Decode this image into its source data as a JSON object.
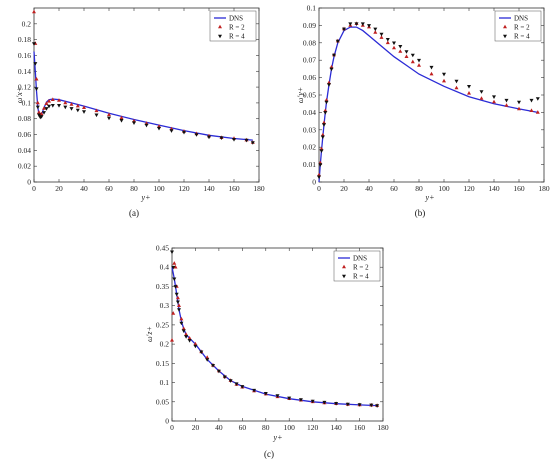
{
  "chart_data": [
    {
      "type": "line",
      "caption": "(a)",
      "xlabel": "y+",
      "ylabel": "ω′x+",
      "xlim": [
        0,
        180
      ],
      "ylim": [
        0,
        0.22
      ],
      "xticks": [
        0,
        20,
        40,
        60,
        80,
        100,
        120,
        140,
        160,
        180
      ],
      "yticks": [
        0,
        0.02,
        0.04,
        0.06,
        0.08,
        0.1,
        0.12,
        0.14,
        0.16,
        0.18,
        0.2
      ],
      "legend": [
        "DNS",
        "R = 2",
        "R = 4"
      ],
      "legend_position": "top-right",
      "series": [
        {
          "name": "DNS",
          "color": "#2b2bd6",
          "x": [
            0,
            1,
            2,
            3,
            4,
            5,
            6,
            8,
            10,
            12,
            15,
            20,
            30,
            40,
            60,
            80,
            100,
            120,
            140,
            160,
            175
          ],
          "y": [
            0.165,
            0.14,
            0.115,
            0.095,
            0.085,
            0.082,
            0.085,
            0.094,
            0.101,
            0.104,
            0.105,
            0.104,
            0.1,
            0.096,
            0.087,
            0.079,
            0.072,
            0.065,
            0.059,
            0.055,
            0.053
          ]
        },
        {
          "name": "R = 2",
          "color": "#c02020",
          "x": [
            0,
            1,
            2,
            3,
            4,
            5,
            6,
            8,
            10,
            12,
            15,
            20,
            25,
            30,
            35,
            40,
            50,
            60,
            70,
            80,
            90,
            100,
            110,
            120,
            130,
            140,
            150,
            160,
            170,
            175
          ],
          "y": [
            0.215,
            0.175,
            0.13,
            0.1,
            0.088,
            0.085,
            0.086,
            0.093,
            0.099,
            0.102,
            0.104,
            0.103,
            0.1,
            0.098,
            0.096,
            0.094,
            0.09,
            0.085,
            0.081,
            0.077,
            0.074,
            0.07,
            0.067,
            0.064,
            0.061,
            0.058,
            0.056,
            0.055,
            0.053,
            0.05
          ]
        },
        {
          "name": "R = 4",
          "color": "#111111",
          "x": [
            0,
            1,
            2,
            3,
            4,
            5,
            6,
            8,
            10,
            12,
            15,
            20,
            25,
            30,
            35,
            40,
            50,
            60,
            70,
            80,
            90,
            100,
            110,
            120,
            130,
            140,
            150,
            160,
            170,
            175
          ],
          "y": [
            0.175,
            0.15,
            0.118,
            0.095,
            0.085,
            0.082,
            0.083,
            0.088,
            0.093,
            0.096,
            0.097,
            0.097,
            0.095,
            0.093,
            0.091,
            0.089,
            0.085,
            0.081,
            0.078,
            0.075,
            0.072,
            0.068,
            0.065,
            0.063,
            0.06,
            0.057,
            0.056,
            0.054,
            0.053,
            0.05
          ]
        }
      ]
    },
    {
      "type": "line",
      "caption": "(b)",
      "xlabel": "y+",
      "ylabel": "ω′y+",
      "xlim": [
        0,
        180
      ],
      "ylim": [
        0,
        0.1
      ],
      "xticks": [
        0,
        20,
        40,
        60,
        80,
        100,
        120,
        140,
        160,
        180
      ],
      "yticks": [
        0,
        0.01,
        0.02,
        0.03,
        0.04,
        0.05,
        0.06,
        0.07,
        0.08,
        0.09,
        0.1
      ],
      "legend": [
        "DNS",
        "R = 2",
        "R = 4"
      ],
      "legend_position": "top-right",
      "series": [
        {
          "name": "DNS",
          "color": "#2b2bd6",
          "x": [
            0,
            1,
            2,
            3,
            4,
            5,
            6,
            8,
            10,
            12,
            15,
            20,
            25,
            30,
            35,
            40,
            50,
            60,
            70,
            80,
            100,
            120,
            140,
            160,
            175
          ],
          "y": [
            0,
            0.01,
            0.018,
            0.026,
            0.033,
            0.04,
            0.046,
            0.056,
            0.065,
            0.072,
            0.08,
            0.087,
            0.089,
            0.089,
            0.087,
            0.084,
            0.078,
            0.072,
            0.067,
            0.062,
            0.055,
            0.049,
            0.045,
            0.042,
            0.04
          ]
        },
        {
          "name": "R = 2",
          "color": "#c02020",
          "x": [
            0,
            1,
            2,
            3,
            4,
            5,
            6,
            8,
            10,
            12,
            15,
            20,
            25,
            30,
            35,
            40,
            45,
            50,
            55,
            60,
            65,
            70,
            75,
            80,
            90,
            100,
            110,
            120,
            130,
            140,
            150,
            160,
            170,
            175
          ],
          "y": [
            0.004,
            0.011,
            0.019,
            0.027,
            0.034,
            0.041,
            0.047,
            0.057,
            0.066,
            0.073,
            0.081,
            0.088,
            0.09,
            0.091,
            0.09,
            0.089,
            0.086,
            0.083,
            0.08,
            0.077,
            0.075,
            0.072,
            0.069,
            0.067,
            0.062,
            0.058,
            0.054,
            0.051,
            0.048,
            0.046,
            0.044,
            0.042,
            0.041,
            0.04
          ]
        },
        {
          "name": "R = 4",
          "color": "#111111",
          "x": [
            0,
            1,
            2,
            3,
            4,
            5,
            6,
            8,
            10,
            12,
            15,
            20,
            25,
            30,
            35,
            40,
            45,
            50,
            55,
            60,
            65,
            70,
            75,
            80,
            90,
            100,
            110,
            120,
            130,
            140,
            150,
            160,
            170,
            175
          ],
          "y": [
            0.003,
            0.01,
            0.018,
            0.026,
            0.033,
            0.04,
            0.046,
            0.056,
            0.065,
            0.073,
            0.081,
            0.088,
            0.091,
            0.091,
            0.091,
            0.09,
            0.088,
            0.085,
            0.082,
            0.08,
            0.078,
            0.075,
            0.073,
            0.07,
            0.066,
            0.062,
            0.058,
            0.055,
            0.052,
            0.049,
            0.047,
            0.046,
            0.047,
            0.048
          ]
        }
      ]
    },
    {
      "type": "line",
      "caption": "(c)",
      "xlabel": "y+",
      "ylabel": "ω′z+",
      "xlim": [
        0,
        180
      ],
      "ylim": [
        0,
        0.45
      ],
      "xticks": [
        0,
        20,
        40,
        60,
        80,
        100,
        120,
        140,
        160,
        180
      ],
      "yticks": [
        0,
        0.05,
        0.1,
        0.15,
        0.2,
        0.25,
        0.3,
        0.35,
        0.4,
        0.45
      ],
      "legend": [
        "DNS",
        "R = 2",
        "R = 4"
      ],
      "legend_position": "top-right",
      "series": [
        {
          "name": "DNS",
          "color": "#2b2bd6",
          "x": [
            0,
            1,
            2,
            3,
            4,
            5,
            6,
            8,
            10,
            12,
            15,
            20,
            25,
            30,
            40,
            50,
            60,
            70,
            80,
            100,
            120,
            140,
            160,
            175
          ],
          "y": [
            0.4,
            0.385,
            0.37,
            0.35,
            0.33,
            0.31,
            0.29,
            0.26,
            0.24,
            0.225,
            0.215,
            0.2,
            0.18,
            0.16,
            0.13,
            0.105,
            0.09,
            0.08,
            0.07,
            0.058,
            0.05,
            0.045,
            0.042,
            0.04
          ]
        },
        {
          "name": "R = 2",
          "color": "#c02020",
          "x": [
            0,
            1,
            2,
            3,
            4,
            5,
            6,
            8,
            10,
            12,
            15,
            20,
            25,
            30,
            35,
            40,
            45,
            50,
            55,
            60,
            70,
            80,
            90,
            100,
            110,
            120,
            130,
            140,
            150,
            160,
            170,
            175
          ],
          "y": [
            0.21,
            0.28,
            0.41,
            0.4,
            0.35,
            0.32,
            0.3,
            0.265,
            0.24,
            0.225,
            0.215,
            0.2,
            0.18,
            0.165,
            0.145,
            0.13,
            0.115,
            0.105,
            0.095,
            0.088,
            0.078,
            0.07,
            0.063,
            0.058,
            0.054,
            0.05,
            0.047,
            0.045,
            0.043,
            0.042,
            0.041,
            0.04
          ]
        },
        {
          "name": "R = 4",
          "color": "#111111",
          "x": [
            0,
            1,
            2,
            3,
            4,
            5,
            6,
            8,
            10,
            12,
            15,
            20,
            25,
            30,
            35,
            40,
            45,
            50,
            55,
            60,
            70,
            80,
            90,
            100,
            110,
            120,
            130,
            140,
            150,
            160,
            170,
            175
          ],
          "y": [
            0.44,
            0.4,
            0.37,
            0.35,
            0.33,
            0.31,
            0.29,
            0.255,
            0.235,
            0.22,
            0.21,
            0.195,
            0.18,
            0.16,
            0.145,
            0.13,
            0.115,
            0.105,
            0.097,
            0.09,
            0.08,
            0.072,
            0.066,
            0.06,
            0.056,
            0.052,
            0.049,
            0.046,
            0.044,
            0.043,
            0.042,
            0.04
          ]
        }
      ]
    }
  ]
}
